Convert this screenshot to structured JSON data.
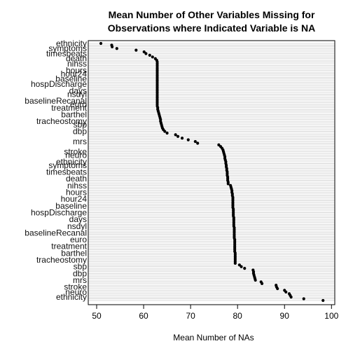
{
  "chart_data": {
    "type": "scatter",
    "title": "Mean Number of Other Variables Missing for Observations where Indicated Variable is NA",
    "title_line1": "Mean Number of Other Variables Missing for",
    "title_line2": "Observations where Indicated Variable is NA",
    "xlabel": "Mean Number of NAs",
    "ylabel": "",
    "xlim": [
      50,
      100
    ],
    "x_ticks": [
      50,
      60,
      70,
      80,
      90,
      100
    ],
    "grid": "horizontal",
    "values": [
      50.9,
      53.2,
      53.3,
      54.3,
      58.4,
      60.1,
      60.5,
      61.3,
      61.9,
      62.5,
      62.8,
      62.9,
      62.9,
      62.9,
      62.9,
      62.9,
      62.9,
      62.9,
      62.9,
      62.9,
      62.9,
      62.9,
      62.9,
      62.9,
      62.9,
      62.9,
      62.9,
      62.9,
      62.9,
      62.9,
      62.9,
      62.9,
      62.9,
      62.9,
      62.9,
      62.9,
      62.9,
      62.9,
      63,
      63,
      63.1,
      63.2,
      63.3,
      63.4,
      63.5,
      63.6,
      63.6,
      63.7,
      63.8,
      63.9,
      64,
      64.2,
      64.5,
      65,
      66.8,
      67.3,
      68.2,
      69.5,
      71,
      71.5,
      76,
      76.4,
      76.7,
      76.9,
      77,
      77.1,
      77.2,
      77.3,
      77.3,
      77.4,
      77.5,
      77.5,
      77.6,
      77.6,
      77.7,
      77.7,
      77.8,
      77.8,
      77.8,
      77.9,
      77.9,
      77.9,
      78,
      78,
      78.5,
      78.6,
      78.7,
      78.8,
      78.8,
      78.9,
      78.9,
      79,
      79,
      79,
      79,
      79,
      79,
      79,
      79.1,
      79.1,
      79.1,
      79.1,
      79.1,
      79.2,
      79.2,
      79.2,
      79.2,
      79.2,
      79.2,
      79.3,
      79.3,
      79.3,
      79.3,
      79.3,
      79.3,
      79.3,
      79.4,
      79.4,
      79.4,
      79.4,
      79.4,
      79.4,
      79.4,
      79.4,
      79.5,
      79.5,
      79.5,
      79.5,
      79.5,
      79.5,
      79.5,
      80.4,
      80.8,
      81.5,
      83.3,
      83.4,
      83.4,
      83.5,
      83.6,
      83.7,
      83.8,
      85,
      85.2,
      88.2,
      88.3,
      88.5,
      90,
      90.3,
      91,
      91.2,
      91.4,
      94.1,
      98.2
    ],
    "visible_labels": [
      "ethnicity",
      "symptoms",
      "timesbeats",
      "death",
      "nihss",
      "hours",
      "hour24",
      "baseline",
      "hospDischarge",
      "days",
      "nsdyl",
      "baselineRecanal",
      "euro",
      "treatment",
      "barthel",
      "tracheostomy",
      "sbp",
      "dbp",
      "mrs",
      "stroke",
      "neuro"
    ]
  }
}
